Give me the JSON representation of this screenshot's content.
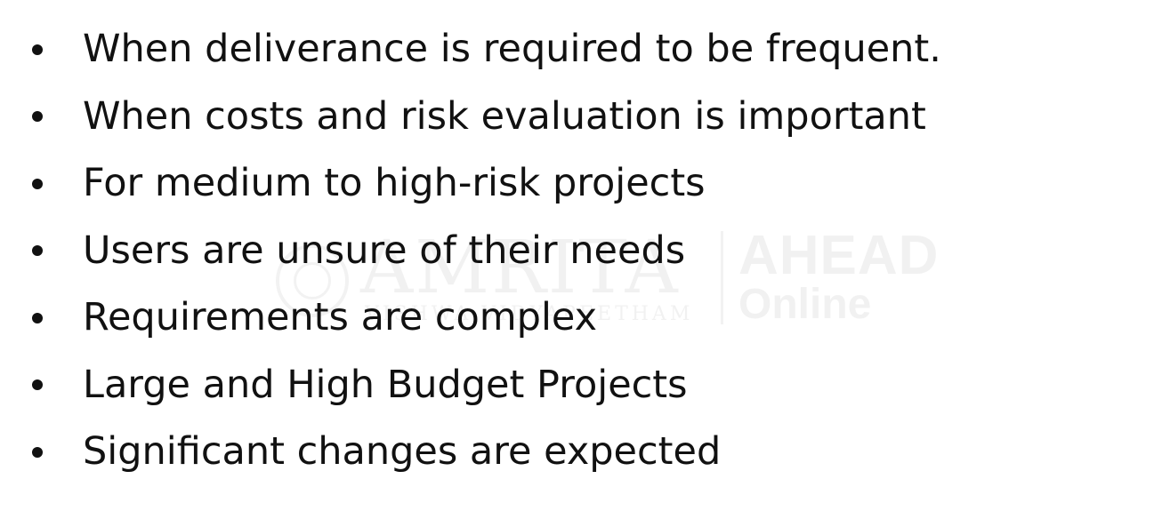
{
  "watermark": {
    "left_text": "AMRITA",
    "left_subtext": "VISHWA VIDYAPEETHAM",
    "right_text_top": "AHEAD",
    "right_text_bottom": "Online"
  },
  "bullets": [
    "When deliverance is required to be frequent.",
    "When costs and risk evaluation is important",
    "For medium to high-risk projects",
    "Users are unsure of their needs",
    "Requirements are complex",
    "Large and High Budget Projects",
    "Significant changes are expected"
  ]
}
